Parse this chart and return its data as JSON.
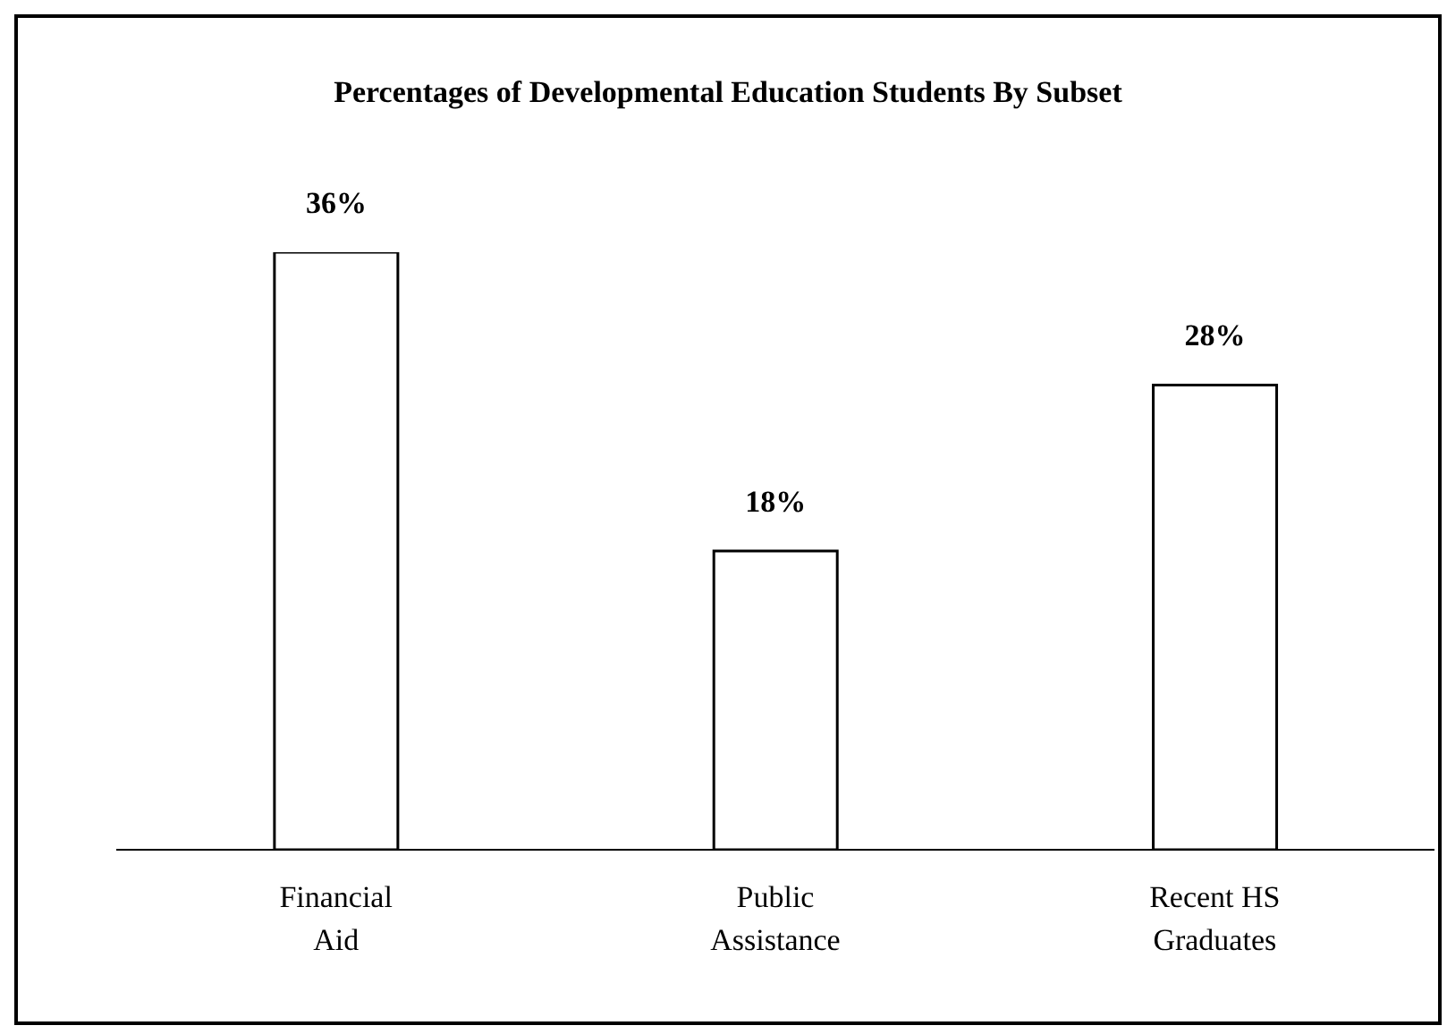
{
  "chart_data": {
    "type": "bar",
    "title": "Percentages of Developmental Education Students By Subset",
    "categories": [
      "Financial Aid",
      "Public Assistance",
      "Recent HS Graduates"
    ],
    "values": [
      36,
      18,
      28
    ],
    "color": "#ffffff",
    "data_labels": true,
    "value_labels": [
      "36%",
      "18%",
      "28%"
    ],
    "tick_labels": "x"
  }
}
